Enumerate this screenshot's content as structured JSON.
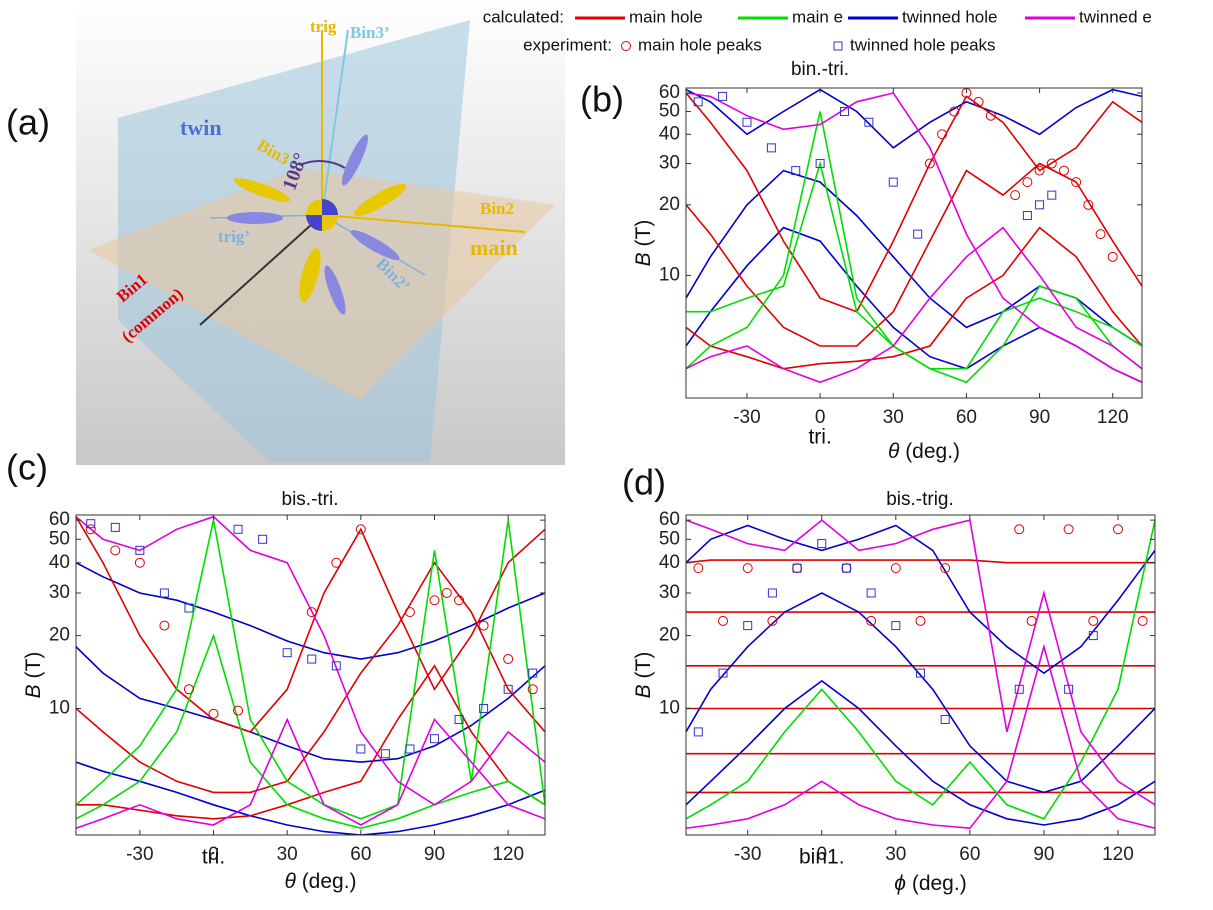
{
  "legend": {
    "calculated_label": "calculated:",
    "experiment_label": "experiment:",
    "items": [
      {
        "name": "main hole",
        "color": "#e00000",
        "style": "line"
      },
      {
        "name": "main e",
        "color": "#00dd00",
        "style": "line"
      },
      {
        "name": "twinned hole",
        "color": "#0000cc",
        "style": "line"
      },
      {
        "name": "twinned e",
        "color": "#e000e0",
        "style": "line"
      },
      {
        "name": "main hole peaks",
        "color": "#e00000",
        "style": "circle"
      },
      {
        "name": "twinned hole peaks",
        "color": "#3333cc",
        "style": "square"
      }
    ]
  },
  "panel_labels": [
    "(a)",
    "(b)",
    "(c)",
    "(d)"
  ],
  "panel_a": {
    "labels": {
      "trig": "trig",
      "bin3p": "Bin3’",
      "twin": "twin",
      "bin3": "Bin3",
      "angle": "108°",
      "bin2": "Bin2",
      "trigp": "trig’",
      "main": "main",
      "bin2p": "Bin2’",
      "bin1": "Bin1",
      "common": "(common)"
    }
  },
  "chart_data": [
    {
      "type": "line",
      "title": "bin.-tri.",
      "xlabel_symbol": "θ",
      "xlabel": "(deg.)",
      "ylabel_symbol": "B",
      "ylabel": "(T)",
      "annotation": "tri.",
      "log_y": true,
      "xlim": [
        -55,
        132
      ],
      "ylim": [
        3,
        63
      ],
      "xticks": [
        -30,
        0,
        30,
        60,
        90,
        120
      ],
      "yticks": [
        10,
        20,
        30,
        40,
        50,
        60
      ],
      "x": [
        -55,
        -45,
        -30,
        -15,
        0,
        15,
        30,
        45,
        60,
        75,
        90,
        105,
        120,
        132
      ],
      "series": [
        {
          "style": "line",
          "color": "#0000cc",
          "values": [
            62,
            55,
            40,
            50,
            62,
            50,
            35,
            45,
            55,
            48,
            40,
            52,
            62,
            58
          ]
        },
        {
          "style": "line",
          "color": "#0000cc",
          "values": [
            8,
            12,
            20,
            28,
            25,
            18,
            12,
            8,
            6,
            7,
            9,
            8,
            6,
            5
          ]
        },
        {
          "style": "line",
          "color": "#0000cc",
          "values": [
            5,
            7,
            11,
            16,
            14,
            9,
            6,
            4.5,
            4,
            5,
            6,
            5,
            4,
            3.5
          ]
        },
        {
          "style": "line",
          "color": "#e00000",
          "values": [
            60,
            45,
            28,
            14,
            8,
            7,
            14,
            30,
            58,
            45,
            28,
            35,
            55,
            45
          ]
        },
        {
          "style": "line",
          "color": "#e00000",
          "values": [
            20,
            15,
            9,
            6,
            5,
            5,
            7,
            14,
            28,
            22,
            30,
            25,
            14,
            9
          ]
        },
        {
          "style": "line",
          "color": "#e00000",
          "values": [
            6,
            5,
            4.5,
            4,
            4.2,
            4.3,
            4.5,
            5,
            8,
            10,
            16,
            12,
            7,
            5
          ]
        },
        {
          "style": "line",
          "color": "#00dd00",
          "values": [
            4,
            5,
            6,
            10,
            50,
            8,
            5,
            4,
            3.5,
            5,
            9,
            8,
            5,
            4
          ]
        },
        {
          "style": "line",
          "color": "#00dd00",
          "values": [
            7,
            7,
            8,
            9,
            30,
            7,
            5,
            4,
            4,
            7,
            8,
            7,
            6,
            5
          ]
        },
        {
          "style": "line",
          "color": "#e000e0",
          "values": [
            60,
            58,
            48,
            42,
            44,
            55,
            60,
            35,
            15,
            8,
            6,
            5,
            4,
            3.5
          ]
        },
        {
          "style": "line",
          "color": "#e000e0",
          "values": [
            4,
            4.5,
            5,
            4,
            3.5,
            4,
            5,
            8,
            12,
            16,
            10,
            6,
            5,
            4
          ]
        },
        {
          "style": "circle",
          "color": "#e00000",
          "x": [
            45,
            50,
            55,
            60,
            65,
            70,
            80,
            85,
            90,
            95,
            100,
            105,
            110,
            115,
            120
          ],
          "values": [
            30,
            40,
            50,
            60,
            55,
            48,
            22,
            25,
            28,
            30,
            28,
            25,
            20,
            15,
            12
          ]
        },
        {
          "style": "square",
          "color": "#3333cc",
          "x": [
            -50,
            -40,
            -30,
            -20,
            -10,
            0,
            10,
            20,
            30,
            40,
            85,
            90,
            95
          ],
          "values": [
            55,
            58,
            45,
            35,
            28,
            30,
            50,
            45,
            25,
            15,
            18,
            20,
            22
          ]
        }
      ]
    },
    {
      "type": "line",
      "title": "bis.-tri.",
      "xlabel_symbol": "θ",
      "xlabel": "(deg.)",
      "ylabel_symbol": "B",
      "ylabel": "(T)",
      "annotation": "tri.",
      "log_y": true,
      "xlim": [
        -56,
        135
      ],
      "ylim": [
        3,
        63
      ],
      "xticks": [
        -30,
        0,
        30,
        60,
        90,
        120
      ],
      "yticks": [
        10,
        20,
        30,
        40,
        50,
        60
      ],
      "x": [
        -56,
        -45,
        -30,
        -15,
        0,
        15,
        30,
        45,
        60,
        75,
        90,
        105,
        120,
        135
      ],
      "series": [
        {
          "style": "line",
          "color": "#0000cc",
          "values": [
            40,
            35,
            30,
            28,
            25,
            22,
            19,
            17,
            16,
            17,
            19,
            22,
            26,
            30
          ]
        },
        {
          "style": "line",
          "color": "#0000cc",
          "values": [
            18,
            14,
            11,
            10,
            9,
            8,
            7,
            6.2,
            6,
            6.2,
            7,
            8.5,
            11,
            15
          ]
        },
        {
          "style": "line",
          "color": "#0000cc",
          "values": [
            6,
            5.5,
            5,
            4.5,
            4,
            3.6,
            3.3,
            3.1,
            3,
            3.1,
            3.3,
            3.6,
            4,
            4.6
          ]
        },
        {
          "style": "line",
          "color": "#e00000",
          "values": [
            62,
            40,
            20,
            12,
            9,
            8,
            12,
            30,
            55,
            25,
            12,
            20,
            40,
            55
          ]
        },
        {
          "style": "line",
          "color": "#e00000",
          "values": [
            10,
            8,
            6,
            5,
            4.5,
            4.5,
            5,
            8,
            14,
            22,
            40,
            25,
            12,
            8
          ]
        },
        {
          "style": "line",
          "color": "#e00000",
          "values": [
            4,
            4,
            3.8,
            3.6,
            3.5,
            3.6,
            4,
            4.5,
            5,
            9,
            15,
            8,
            5,
            4
          ]
        },
        {
          "style": "line",
          "color": "#00dd00",
          "values": [
            4,
            5,
            7,
            12,
            60,
            9,
            5,
            4,
            3.5,
            4,
            45,
            5,
            60,
            4
          ]
        },
        {
          "style": "line",
          "color": "#00dd00",
          "values": [
            3.5,
            4,
            5,
            8,
            20,
            6,
            4,
            3.5,
            3.2,
            3.5,
            4,
            4.5,
            5,
            4
          ]
        },
        {
          "style": "line",
          "color": "#e000e0",
          "values": [
            62,
            50,
            45,
            55,
            62,
            45,
            40,
            20,
            8,
            5,
            4,
            5,
            8,
            6
          ]
        },
        {
          "style": "line",
          "color": "#e000e0",
          "values": [
            3.2,
            3.5,
            4,
            3.5,
            3.3,
            4,
            9,
            4,
            3.3,
            4,
            9,
            6,
            4,
            3.5
          ]
        },
        {
          "style": "circle",
          "color": "#e00000",
          "x": [
            -50,
            -40,
            -30,
            -20,
            -10,
            0,
            10,
            40,
            50,
            60,
            80,
            90,
            95,
            100,
            110,
            120,
            130
          ],
          "values": [
            55,
            45,
            40,
            22,
            12,
            9.5,
            9.8,
            25,
            40,
            55,
            25,
            28,
            30,
            28,
            22,
            16,
            12
          ]
        },
        {
          "style": "square",
          "color": "#3333cc",
          "x": [
            -50,
            -40,
            -30,
            -20,
            -10,
            10,
            20,
            30,
            40,
            50,
            60,
            70,
            80,
            90,
            100,
            110,
            120,
            130
          ],
          "values": [
            58,
            56,
            45,
            30,
            26,
            55,
            50,
            17,
            16,
            15,
            6.8,
            6.5,
            6.8,
            7.5,
            9,
            10,
            12,
            14
          ]
        }
      ]
    },
    {
      "type": "line",
      "title": "bis.-trig.",
      "xlabel_symbol": "ϕ",
      "xlabel": "(deg.)",
      "ylabel_symbol": "B",
      "ylabel": "(T)",
      "annotation": "bin1.",
      "log_y": true,
      "xlim": [
        -55,
        135
      ],
      "ylim": [
        3,
        63
      ],
      "xticks": [
        -30,
        0,
        30,
        60,
        90,
        120
      ],
      "yticks": [
        10,
        20,
        30,
        40,
        50,
        60
      ],
      "x": [
        -55,
        -45,
        -30,
        -15,
        0,
        15,
        30,
        45,
        60,
        75,
        90,
        105,
        120,
        135
      ],
      "series": [
        {
          "style": "line",
          "color": "#e00000",
          "values": [
            40,
            41,
            41,
            41,
            41,
            41,
            41,
            41,
            41,
            40,
            40,
            40,
            40,
            40
          ]
        },
        {
          "style": "line",
          "color": "#e00000",
          "values": [
            25,
            25,
            25,
            25,
            25,
            25,
            25,
            25,
            25,
            25,
            25,
            25,
            25,
            25
          ]
        },
        {
          "style": "line",
          "color": "#e00000",
          "values": [
            15,
            15,
            15,
            15,
            15,
            15,
            15,
            15,
            15,
            15,
            15,
            15,
            15,
            15
          ]
        },
        {
          "style": "line",
          "color": "#e00000",
          "values": [
            10,
            10,
            10,
            10,
            10,
            10,
            10,
            10,
            10,
            10,
            10,
            10,
            10,
            10
          ]
        },
        {
          "style": "line",
          "color": "#e00000",
          "values": [
            6.5,
            6.5,
            6.5,
            6.5,
            6.5,
            6.5,
            6.5,
            6.5,
            6.5,
            6.5,
            6.5,
            6.5,
            6.5,
            6.5
          ]
        },
        {
          "style": "line",
          "color": "#e00000",
          "values": [
            4.5,
            4.5,
            4.5,
            4.5,
            4.5,
            4.5,
            4.5,
            4.5,
            4.5,
            4.5,
            4.5,
            4.5,
            4.5,
            4.5
          ]
        },
        {
          "style": "line",
          "color": "#0000cc",
          "values": [
            40,
            50,
            57,
            50,
            45,
            50,
            57,
            45,
            25,
            18,
            14,
            18,
            28,
            45
          ]
        },
        {
          "style": "line",
          "color": "#0000cc",
          "values": [
            8,
            12,
            18,
            25,
            30,
            25,
            18,
            12,
            7,
            5,
            4.5,
            5,
            7,
            10
          ]
        },
        {
          "style": "line",
          "color": "#0000cc",
          "values": [
            4,
            5,
            7,
            10,
            13,
            10,
            7,
            5,
            4,
            3.5,
            3.3,
            3.5,
            4,
            5
          ]
        },
        {
          "style": "line",
          "color": "#00dd00",
          "values": [
            3.5,
            4,
            5,
            8,
            12,
            8,
            5,
            4,
            6,
            4,
            3.5,
            6,
            12,
            60
          ]
        },
        {
          "style": "line",
          "color": "#e000e0",
          "values": [
            60,
            55,
            48,
            45,
            60,
            45,
            48,
            55,
            60,
            8,
            30,
            8,
            5,
            4
          ]
        },
        {
          "style": "line",
          "color": "#e000e0",
          "values": [
            3.2,
            3.3,
            3.5,
            4,
            5,
            4,
            3.5,
            3.3,
            3.2,
            5,
            18,
            5,
            3.5,
            3.2
          ]
        },
        {
          "style": "circle",
          "color": "#e00000",
          "x": [
            -50,
            -30,
            -10,
            10,
            30,
            50,
            80,
            100,
            120,
            -40,
            -20,
            20,
            40,
            85,
            110,
            130
          ],
          "values": [
            38,
            38,
            38,
            38,
            38,
            38,
            55,
            55,
            55,
            23,
            23,
            23,
            23,
            23,
            23,
            23
          ]
        },
        {
          "style": "square",
          "color": "#3333cc",
          "x": [
            -50,
            -40,
            -30,
            -20,
            -10,
            0,
            10,
            20,
            30,
            40,
            50,
            80,
            100,
            110
          ],
          "values": [
            8,
            14,
            22,
            30,
            38,
            48,
            38,
            30,
            22,
            14,
            9,
            12,
            12,
            20
          ]
        }
      ]
    }
  ]
}
